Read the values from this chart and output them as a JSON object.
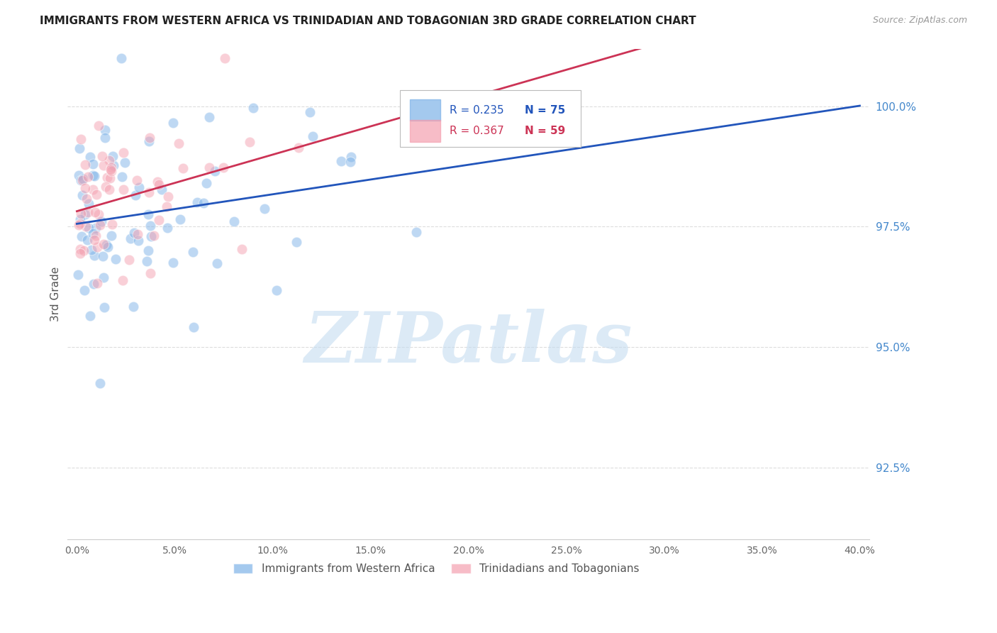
{
  "title": "IMMIGRANTS FROM WESTERN AFRICA VS TRINIDADIAN AND TOBAGONIAN 3RD GRADE CORRELATION CHART",
  "source": "Source: ZipAtlas.com",
  "ylabel": "3rd Grade",
  "xlim_min": 0.0,
  "xlim_max": 40.0,
  "ylim_min": 91.0,
  "ylim_max": 101.2,
  "yticks": [
    92.5,
    95.0,
    97.5,
    100.0
  ],
  "xticks": [
    0.0,
    5.0,
    10.0,
    15.0,
    20.0,
    25.0,
    30.0,
    35.0,
    40.0
  ],
  "blue_R": 0.235,
  "blue_N": 75,
  "pink_R": 0.367,
  "pink_N": 59,
  "blue_color": "#7EB3E8",
  "pink_color": "#F4A0B0",
  "blue_line_color": "#2255BB",
  "pink_line_color": "#CC3355",
  "watermark": "ZIPatlas",
  "watermark_color": "#C5DCF0",
  "legend_label_blue": "Immigrants from Western Africa",
  "legend_label_pink": "Trinidadians and Tobagonians",
  "blue_seed": 42,
  "pink_seed": 77
}
